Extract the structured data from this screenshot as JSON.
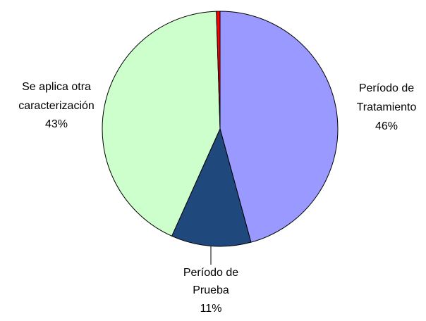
{
  "chart_data": {
    "type": "pie",
    "categories": [
      "Período de Tratamiento",
      "Período de Prueba",
      "Se aplica otra caracterización",
      null
    ],
    "values": [
      46,
      11,
      43,
      0.5
    ],
    "value_labels": [
      "46%",
      "11%",
      "43%",
      null
    ],
    "colors": [
      "#9999ff",
      "#1f497d",
      "#ccffcc",
      "#ff0000"
    ]
  }
}
